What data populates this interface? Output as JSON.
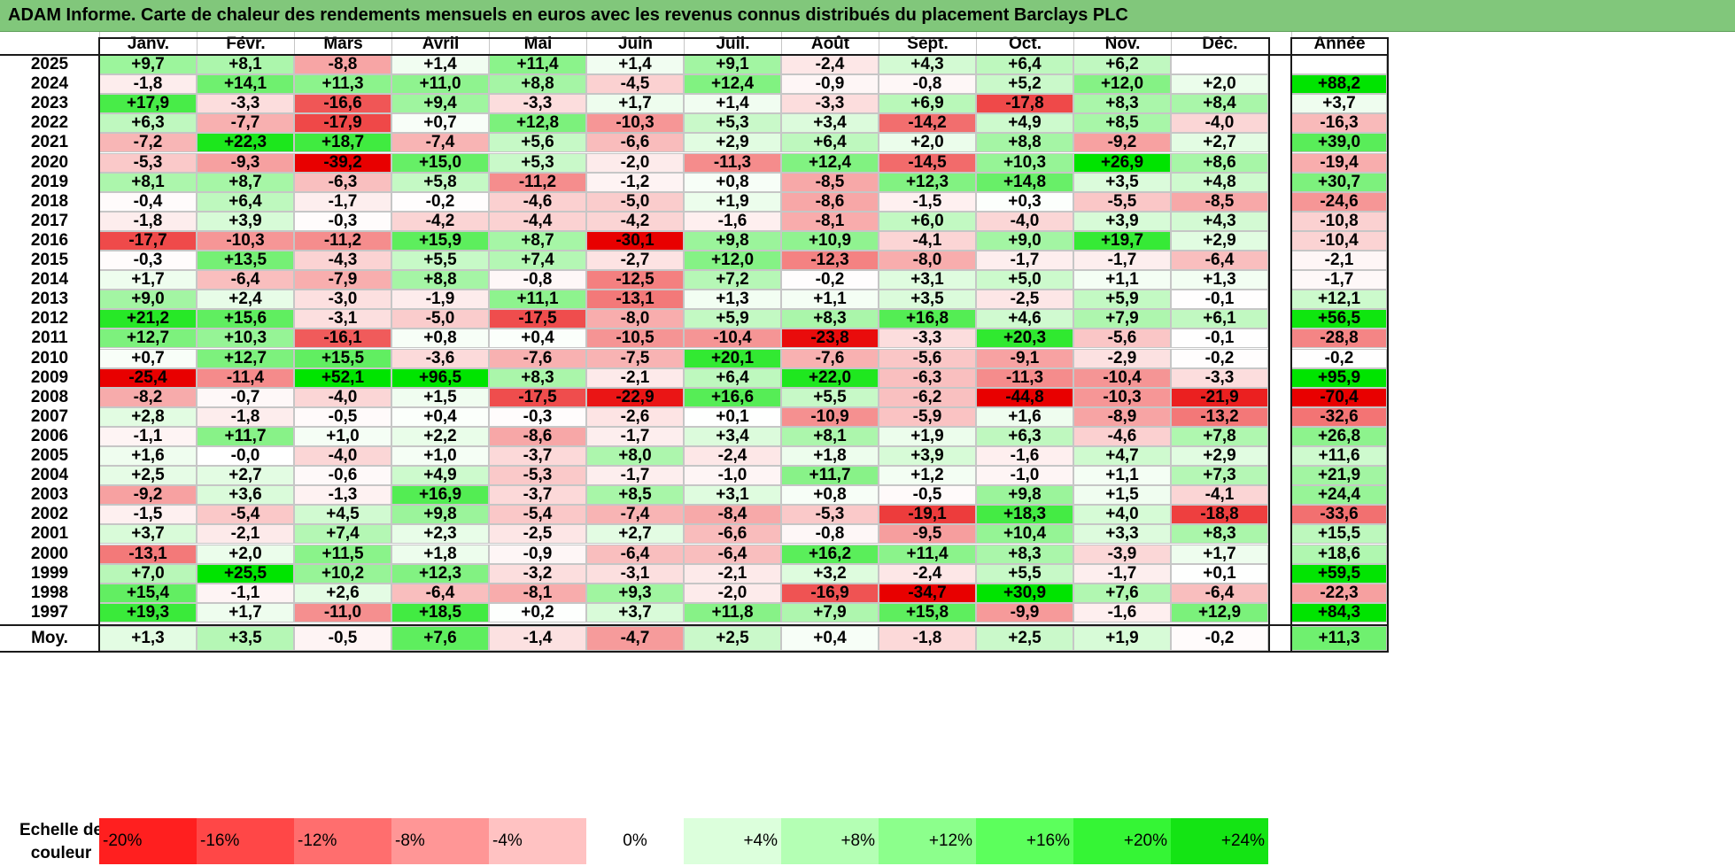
{
  "title": "ADAM Informe. Carte de chaleur des rendements mensuels en euros avec les revenus connus distribués du placement Barclays PLC",
  "chart_data": {
    "type": "heatmap",
    "months": [
      "Janv.",
      "Févr.",
      "Mars",
      "Avril",
      "Mai",
      "Juin",
      "Juil.",
      "Août",
      "Sept.",
      "Oct.",
      "Nov.",
      "Déc."
    ],
    "annual_header": "Année",
    "average_label": "Moy.",
    "rows": [
      {
        "year": "2025",
        "values": [
          "+9,7",
          "+8,1",
          "-8,8",
          "+1,4",
          "+11,4",
          "+1,4",
          "+9,1",
          "-2,4",
          "+4,3",
          "+6,4",
          "+6,2",
          ""
        ],
        "annual": ""
      },
      {
        "year": "2024",
        "values": [
          "-1,8",
          "+14,1",
          "+11,3",
          "+11,0",
          "+8,8",
          "-4,5",
          "+12,4",
          "-0,9",
          "-0,8",
          "+5,2",
          "+12,0",
          "+2,0"
        ],
        "annual": "+88,2"
      },
      {
        "year": "2023",
        "values": [
          "+17,9",
          "-3,3",
          "-16,6",
          "+9,4",
          "-3,3",
          "+1,7",
          "+1,4",
          "-3,3",
          "+6,9",
          "-17,8",
          "+8,3",
          "+8,4"
        ],
        "annual": "+3,7"
      },
      {
        "year": "2022",
        "values": [
          "+6,3",
          "-7,7",
          "-17,9",
          "+0,7",
          "+12,8",
          "-10,3",
          "+5,3",
          "+3,4",
          "-14,2",
          "+4,9",
          "+8,5",
          "-4,0"
        ],
        "annual": "-16,3"
      },
      {
        "year": "2021",
        "values": [
          "-7,2",
          "+22,3",
          "+18,7",
          "-7,4",
          "+5,6",
          "-6,6",
          "+2,9",
          "+6,4",
          "+2,0",
          "+8,8",
          "-9,2",
          "+2,7"
        ],
        "annual": "+39,0"
      },
      {
        "year": "2020",
        "values": [
          "-5,3",
          "-9,3",
          "-39,2",
          "+15,0",
          "+5,3",
          "-2,0",
          "-11,3",
          "+12,4",
          "-14,5",
          "+10,3",
          "+26,9",
          "+8,6"
        ],
        "annual": "-19,4"
      },
      {
        "year": "2019",
        "values": [
          "+8,1",
          "+8,7",
          "-6,3",
          "+5,8",
          "-11,2",
          "-1,2",
          "+0,8",
          "-8,5",
          "+12,3",
          "+14,8",
          "+3,5",
          "+4,8"
        ],
        "annual": "+30,7"
      },
      {
        "year": "2018",
        "values": [
          "-0,4",
          "+6,4",
          "-1,7",
          "-0,2",
          "-4,6",
          "-5,0",
          "+1,9",
          "-8,6",
          "-1,5",
          "+0,3",
          "-5,5",
          "-8,5"
        ],
        "annual": "-24,6"
      },
      {
        "year": "2017",
        "values": [
          "-1,8",
          "+3,9",
          "-0,3",
          "-4,2",
          "-4,4",
          "-4,2",
          "-1,6",
          "-8,1",
          "+6,0",
          "-4,0",
          "+3,9",
          "+4,3"
        ],
        "annual": "-10,8"
      },
      {
        "year": "2016",
        "values": [
          "-17,7",
          "-10,3",
          "-11,2",
          "+15,9",
          "+8,7",
          "-30,1",
          "+9,8",
          "+10,9",
          "-4,1",
          "+9,0",
          "+19,7",
          "+2,9"
        ],
        "annual": "-10,4"
      },
      {
        "year": "2015",
        "values": [
          "-0,3",
          "+13,5",
          "-4,3",
          "+5,5",
          "+7,4",
          "-2,7",
          "+12,0",
          "-12,3",
          "-8,0",
          "-1,7",
          "-1,7",
          "-6,4"
        ],
        "annual": "-2,1"
      },
      {
        "year": "2014",
        "values": [
          "+1,7",
          "-6,4",
          "-7,9",
          "+8,8",
          "-0,8",
          "-12,5",
          "+7,2",
          "-0,2",
          "+3,1",
          "+5,0",
          "+1,1",
          "+1,3"
        ],
        "annual": "-1,7"
      },
      {
        "year": "2013",
        "values": [
          "+9,0",
          "+2,4",
          "-3,0",
          "-1,9",
          "+11,1",
          "-13,1",
          "+1,3",
          "+1,1",
          "+3,5",
          "-2,5",
          "+5,9",
          "-0,1"
        ],
        "annual": "+12,1"
      },
      {
        "year": "2012",
        "values": [
          "+21,2",
          "+15,6",
          "-3,1",
          "-5,0",
          "-17,5",
          "-8,0",
          "+5,9",
          "+8,3",
          "+16,8",
          "+4,6",
          "+7,9",
          "+6,1"
        ],
        "annual": "+56,5"
      },
      {
        "year": "2011",
        "values": [
          "+12,7",
          "+10,3",
          "-16,1",
          "+0,8",
          "+0,4",
          "-10,5",
          "-10,4",
          "-23,8",
          "-3,3",
          "+20,3",
          "-5,6",
          "-0,1"
        ],
        "annual": "-28,8"
      },
      {
        "year": "2010",
        "values": [
          "+0,7",
          "+12,7",
          "+15,5",
          "-3,6",
          "-7,6",
          "-7,5",
          "+20,1",
          "-7,6",
          "-5,6",
          "-9,1",
          "-2,9",
          "-0,2"
        ],
        "annual": "-0,2"
      },
      {
        "year": "2009",
        "values": [
          "-25,4",
          "-11,4",
          "+52,1",
          "+96,5",
          "+8,3",
          "-2,1",
          "+6,4",
          "+22,0",
          "-6,3",
          "-11,3",
          "-10,4",
          "-3,3"
        ],
        "annual": "+95,9"
      },
      {
        "year": "2008",
        "values": [
          "-8,2",
          "-0,7",
          "-4,0",
          "+1,5",
          "-17,5",
          "-22,9",
          "+16,6",
          "+5,5",
          "-6,2",
          "-44,8",
          "-10,3",
          "-21,9"
        ],
        "annual": "-70,4"
      },
      {
        "year": "2007",
        "values": [
          "+2,8",
          "-1,8",
          "-0,5",
          "+0,4",
          "-0,3",
          "-2,6",
          "+0,1",
          "-10,9",
          "-5,9",
          "+1,6",
          "-8,9",
          "-13,2"
        ],
        "annual": "-32,6"
      },
      {
        "year": "2006",
        "values": [
          "-1,1",
          "+11,7",
          "+1,0",
          "+2,2",
          "-8,6",
          "-1,7",
          "+3,4",
          "+8,1",
          "+1,9",
          "+6,3",
          "-4,6",
          "+7,8"
        ],
        "annual": "+26,8"
      },
      {
        "year": "2005",
        "values": [
          "+1,6",
          "-0,0",
          "-4,0",
          "+1,0",
          "-3,7",
          "+8,0",
          "-2,4",
          "+1,8",
          "+3,9",
          "-1,6",
          "+4,7",
          "+2,9"
        ],
        "annual": "+11,6"
      },
      {
        "year": "2004",
        "values": [
          "+2,5",
          "+2,7",
          "-0,6",
          "+4,9",
          "-5,3",
          "-1,7",
          "-1,0",
          "+11,7",
          "+1,2",
          "-1,0",
          "+1,1",
          "+7,3"
        ],
        "annual": "+21,9"
      },
      {
        "year": "2003",
        "values": [
          "-9,2",
          "+3,6",
          "-1,3",
          "+16,9",
          "-3,7",
          "+8,5",
          "+3,1",
          "+0,8",
          "-0,5",
          "+9,8",
          "+1,5",
          "-4,1"
        ],
        "annual": "+24,4"
      },
      {
        "year": "2002",
        "values": [
          "-1,5",
          "-5,4",
          "+4,5",
          "+9,8",
          "-5,4",
          "-7,4",
          "-8,4",
          "-5,3",
          "-19,1",
          "+18,3",
          "+4,0",
          "-18,8"
        ],
        "annual": "-33,6"
      },
      {
        "year": "2001",
        "values": [
          "+3,7",
          "-2,1",
          "+7,4",
          "+2,3",
          "-2,5",
          "+2,7",
          "-6,6",
          "-0,8",
          "-9,5",
          "+10,4",
          "+3,3",
          "+8,3"
        ],
        "annual": "+15,5"
      },
      {
        "year": "2000",
        "values": [
          "-13,1",
          "+2,0",
          "+11,5",
          "+1,8",
          "-0,9",
          "-6,4",
          "-6,4",
          "+16,2",
          "+11,4",
          "+8,3",
          "-3,9",
          "+1,7"
        ],
        "annual": "+18,6"
      },
      {
        "year": "1999",
        "values": [
          "+7,0",
          "+25,5",
          "+10,2",
          "+12,3",
          "-3,2",
          "-3,1",
          "-2,1",
          "+3,2",
          "-2,4",
          "+5,5",
          "-1,7",
          "+0,1"
        ],
        "annual": "+59,5"
      },
      {
        "year": "1998",
        "values": [
          "+15,4",
          "-1,1",
          "+2,6",
          "-6,4",
          "-8,1",
          "+9,3",
          "-2,0",
          "-16,9",
          "-34,7",
          "+30,9",
          "+7,6",
          "-6,4"
        ],
        "annual": "-22,3"
      },
      {
        "year": "1997",
        "values": [
          "+19,3",
          "+1,7",
          "-11,0",
          "+18,5",
          "+0,2",
          "+3,7",
          "+11,8",
          "+7,9",
          "+15,8",
          "-9,9",
          "-1,6",
          "+12,9"
        ],
        "annual": "+84,3"
      }
    ],
    "average": {
      "values": [
        "+1,3",
        "+3,5",
        "-0,5",
        "+7,6",
        "-1,4",
        "-4,7",
        "+2,5",
        "+0,4",
        "-1,8",
        "+2,5",
        "+1,9",
        "-0,2"
      ],
      "annual": "+11,3"
    },
    "color_scale": {
      "label": "Echelle de\ncouleur",
      "steps": [
        {
          "label": "-20%",
          "color": "#ff1f1f"
        },
        {
          "label": "-16%",
          "color": "#ff4747"
        },
        {
          "label": "-12%",
          "color": "#ff6e6e"
        },
        {
          "label": "-8%",
          "color": "#ff9696"
        },
        {
          "label": "-4%",
          "color": "#ffc2c2"
        },
        {
          "label": "0%",
          "color": "#ffffff"
        },
        {
          "label": "+4%",
          "color": "#dcffdc"
        },
        {
          "label": "+8%",
          "color": "#b4ffb4"
        },
        {
          "label": "+12%",
          "color": "#8cff8c"
        },
        {
          "label": "+16%",
          "color": "#5cff5c"
        },
        {
          "label": "+20%",
          "color": "#35f535"
        },
        {
          "label": "+24%",
          "color": "#14e414"
        }
      ]
    }
  }
}
